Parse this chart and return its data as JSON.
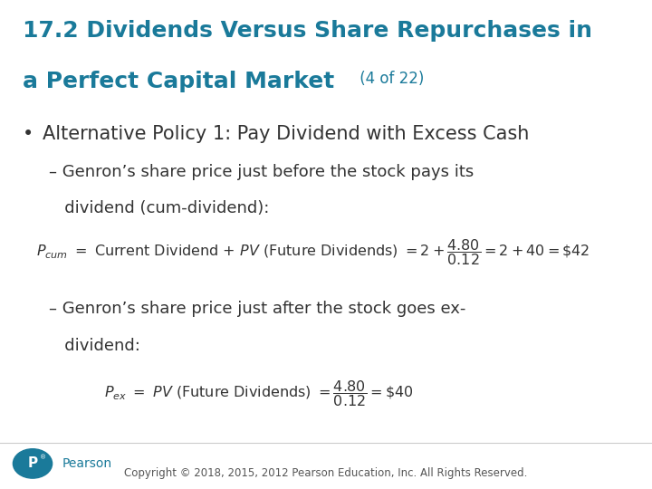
{
  "title_line1": "17.2 Dividends Versus Share Repurchases in",
  "title_line2": "a Perfect Capital Market",
  "title_suffix": " (4 of 22)",
  "title_color": "#1a7a9a",
  "title_fontsize": 18,
  "title_suffix_fontsize": 12,
  "bg_color": "#ffffff",
  "bullet_color": "#333333",
  "text_color": "#333333",
  "bullet1": "Alternative Policy 1: Pay Dividend with Excess Cash",
  "sub1_line1": "– Genron’s share price just before the stock pays its",
  "sub1_line2": "   dividend (cum-dividend):",
  "sub2_line1": "– Genron’s share price just after the stock goes ex-",
  "sub2_line2": "   dividend:",
  "footer": "Copyright © 2018, 2015, 2012 Pearson Education, Inc. All Rights Reserved.",
  "pearson_color": "#1a7a9a",
  "bullet_fontsize": 15,
  "sub_fontsize": 13,
  "eq_fontsize": 11.5,
  "footer_fontsize": 8.5
}
